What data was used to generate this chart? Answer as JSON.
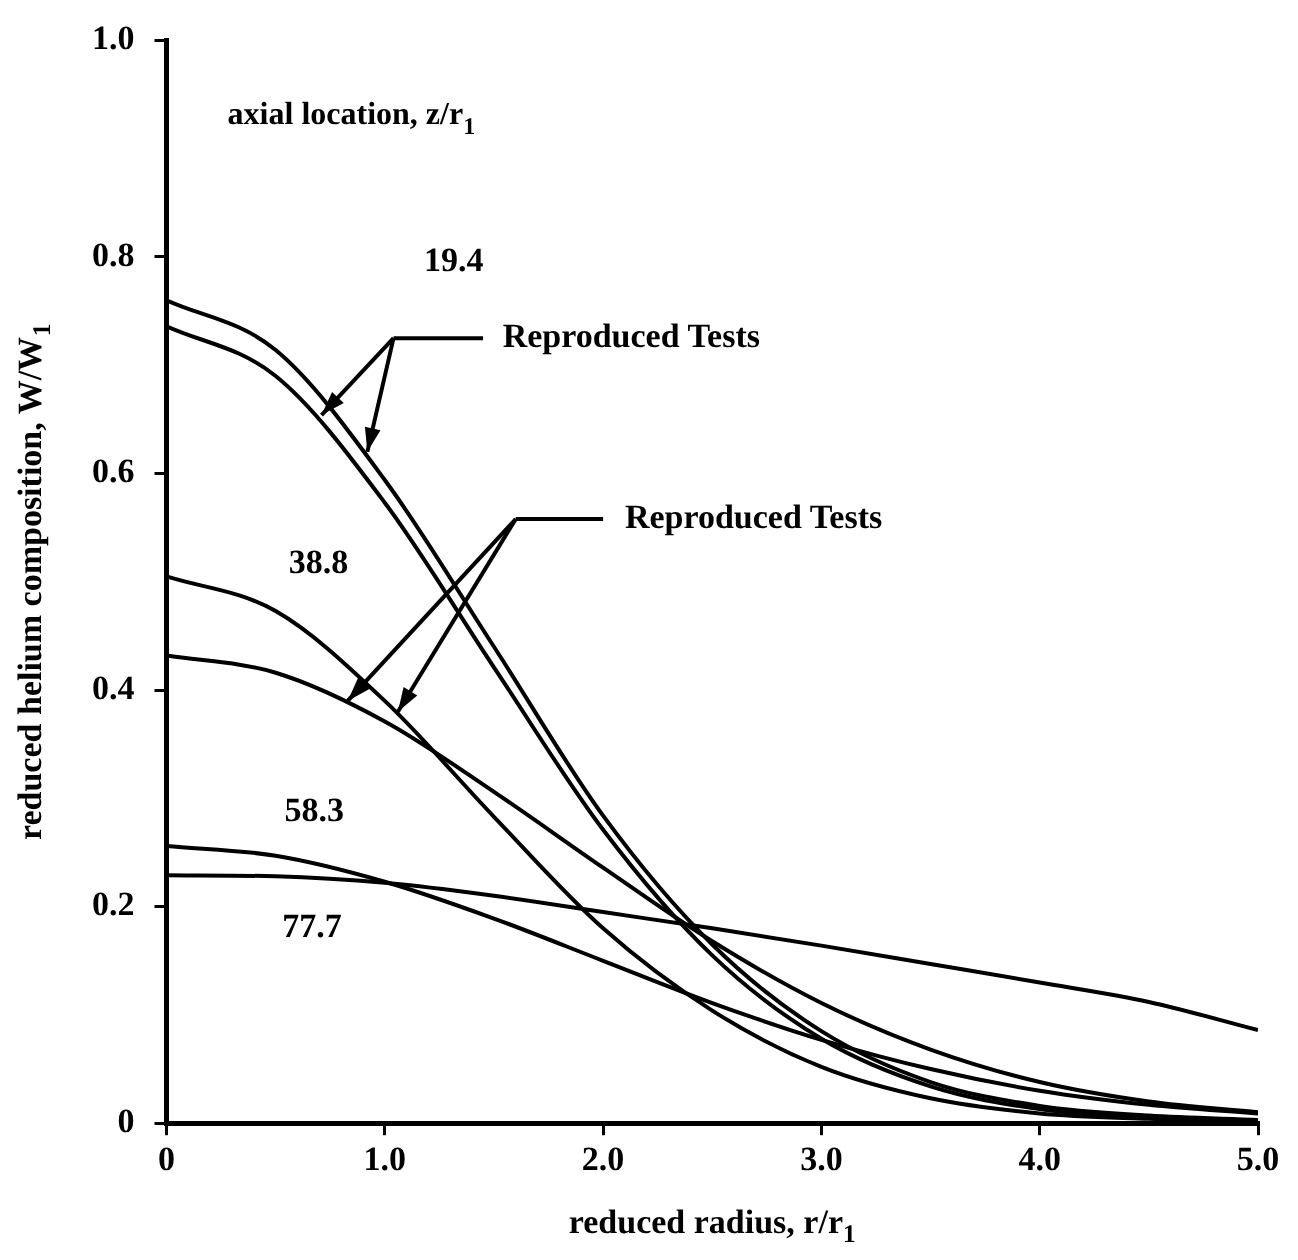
{
  "chart_data": {
    "type": "line",
    "xlabel": "reduced radius, r/r$_{1}$",
    "ylabel": "reduced helium composition, W/W$_{1}$",
    "x": [
      0,
      0.5,
      1,
      1.5,
      2,
      2.5,
      3,
      3.5,
      4,
      4.5,
      5
    ],
    "xlim": [
      0,
      5
    ],
    "xticks": [
      0,
      {
        "value": 1,
        "label": "1.0"
      },
      {
        "value": 2,
        "label": "2.0"
      },
      {
        "value": 3,
        "label": "3.0"
      },
      {
        "value": 4,
        "label": "4.0"
      },
      {
        "value": 5,
        "label": "5.0"
      }
    ],
    "ylim": [
      0,
      1
    ],
    "yticks": [
      0,
      0.2,
      0.4,
      0.6,
      0.8,
      {
        "value": 1,
        "label": "1.0"
      }
    ],
    "marker": "none",
    "line_style": "solid",
    "legend": false,
    "series": [
      {
        "color": "#000000",
        "values": [
          0.76,
          0.714,
          0.594,
          0.44,
          0.284,
          0.165,
          0.085,
          0.038,
          0.016,
          0.007,
          0.003
        ]
      },
      {
        "color": "#000000",
        "values": [
          0.736,
          0.69,
          0.573,
          0.421,
          0.271,
          0.155,
          0.078,
          0.034,
          0.013,
          0.005,
          0.002
        ]
      },
      {
        "color": "#000000",
        "values": [
          0.505,
          0.473,
          0.39,
          0.283,
          0.18,
          0.104,
          0.052,
          0.023,
          0.009,
          0.004,
          0.001
        ]
      },
      {
        "color": "#000000",
        "values": [
          0.432,
          0.416,
          0.371,
          0.306,
          0.236,
          0.168,
          0.111,
          0.068,
          0.038,
          0.02,
          0.01
        ]
      },
      {
        "color": "#000000",
        "values": [
          0.256,
          0.247,
          0.223,
          0.189,
          0.15,
          0.111,
          0.077,
          0.05,
          0.03,
          0.017,
          0.009
        ]
      },
      {
        "color": "#000000",
        "values": [
          0.229,
          0.228,
          0.222,
          0.21,
          0.195,
          0.18,
          0.164,
          0.147,
          0.13,
          0.112,
          0.086
        ]
      }
    ],
    "annotations": [
      "axial location, z/r$_{1}$",
      "19.4",
      "38.8",
      "58.3",
      "77.7",
      "Reproduced Tests",
      "Reproduced Tests"
    ]
  }
}
